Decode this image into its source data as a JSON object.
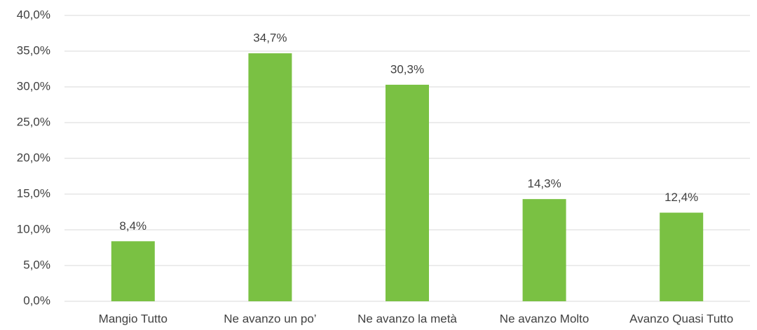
{
  "chart_data": {
    "type": "bar",
    "categories": [
      "Mangio Tutto",
      "Ne avanzo un po’",
      "Ne avanzo la metà",
      "Ne avanzo Molto",
      "Avanzo Quasi Tutto"
    ],
    "values": [
      8.4,
      34.7,
      30.3,
      14.3,
      12.4
    ],
    "value_labels": [
      "8,4%",
      "34,7%",
      "30,3%",
      "14,3%",
      "12,4%"
    ],
    "color": "#7ac143",
    "ylim": [
      0,
      40
    ],
    "yticks": [
      {
        "value": 0,
        "label": "0,0%"
      },
      {
        "value": 5,
        "label": "5,0%"
      },
      {
        "value": 10,
        "label": "10,0%"
      },
      {
        "value": 15,
        "label": "15,0%"
      },
      {
        "value": 20,
        "label": "20,0%"
      },
      {
        "value": 25,
        "label": "25,0%"
      },
      {
        "value": 30,
        "label": "30,0%"
      },
      {
        "value": 35,
        "label": "35,0%"
      },
      {
        "value": 40,
        "label": "40,0%"
      }
    ],
    "grid": true
  }
}
